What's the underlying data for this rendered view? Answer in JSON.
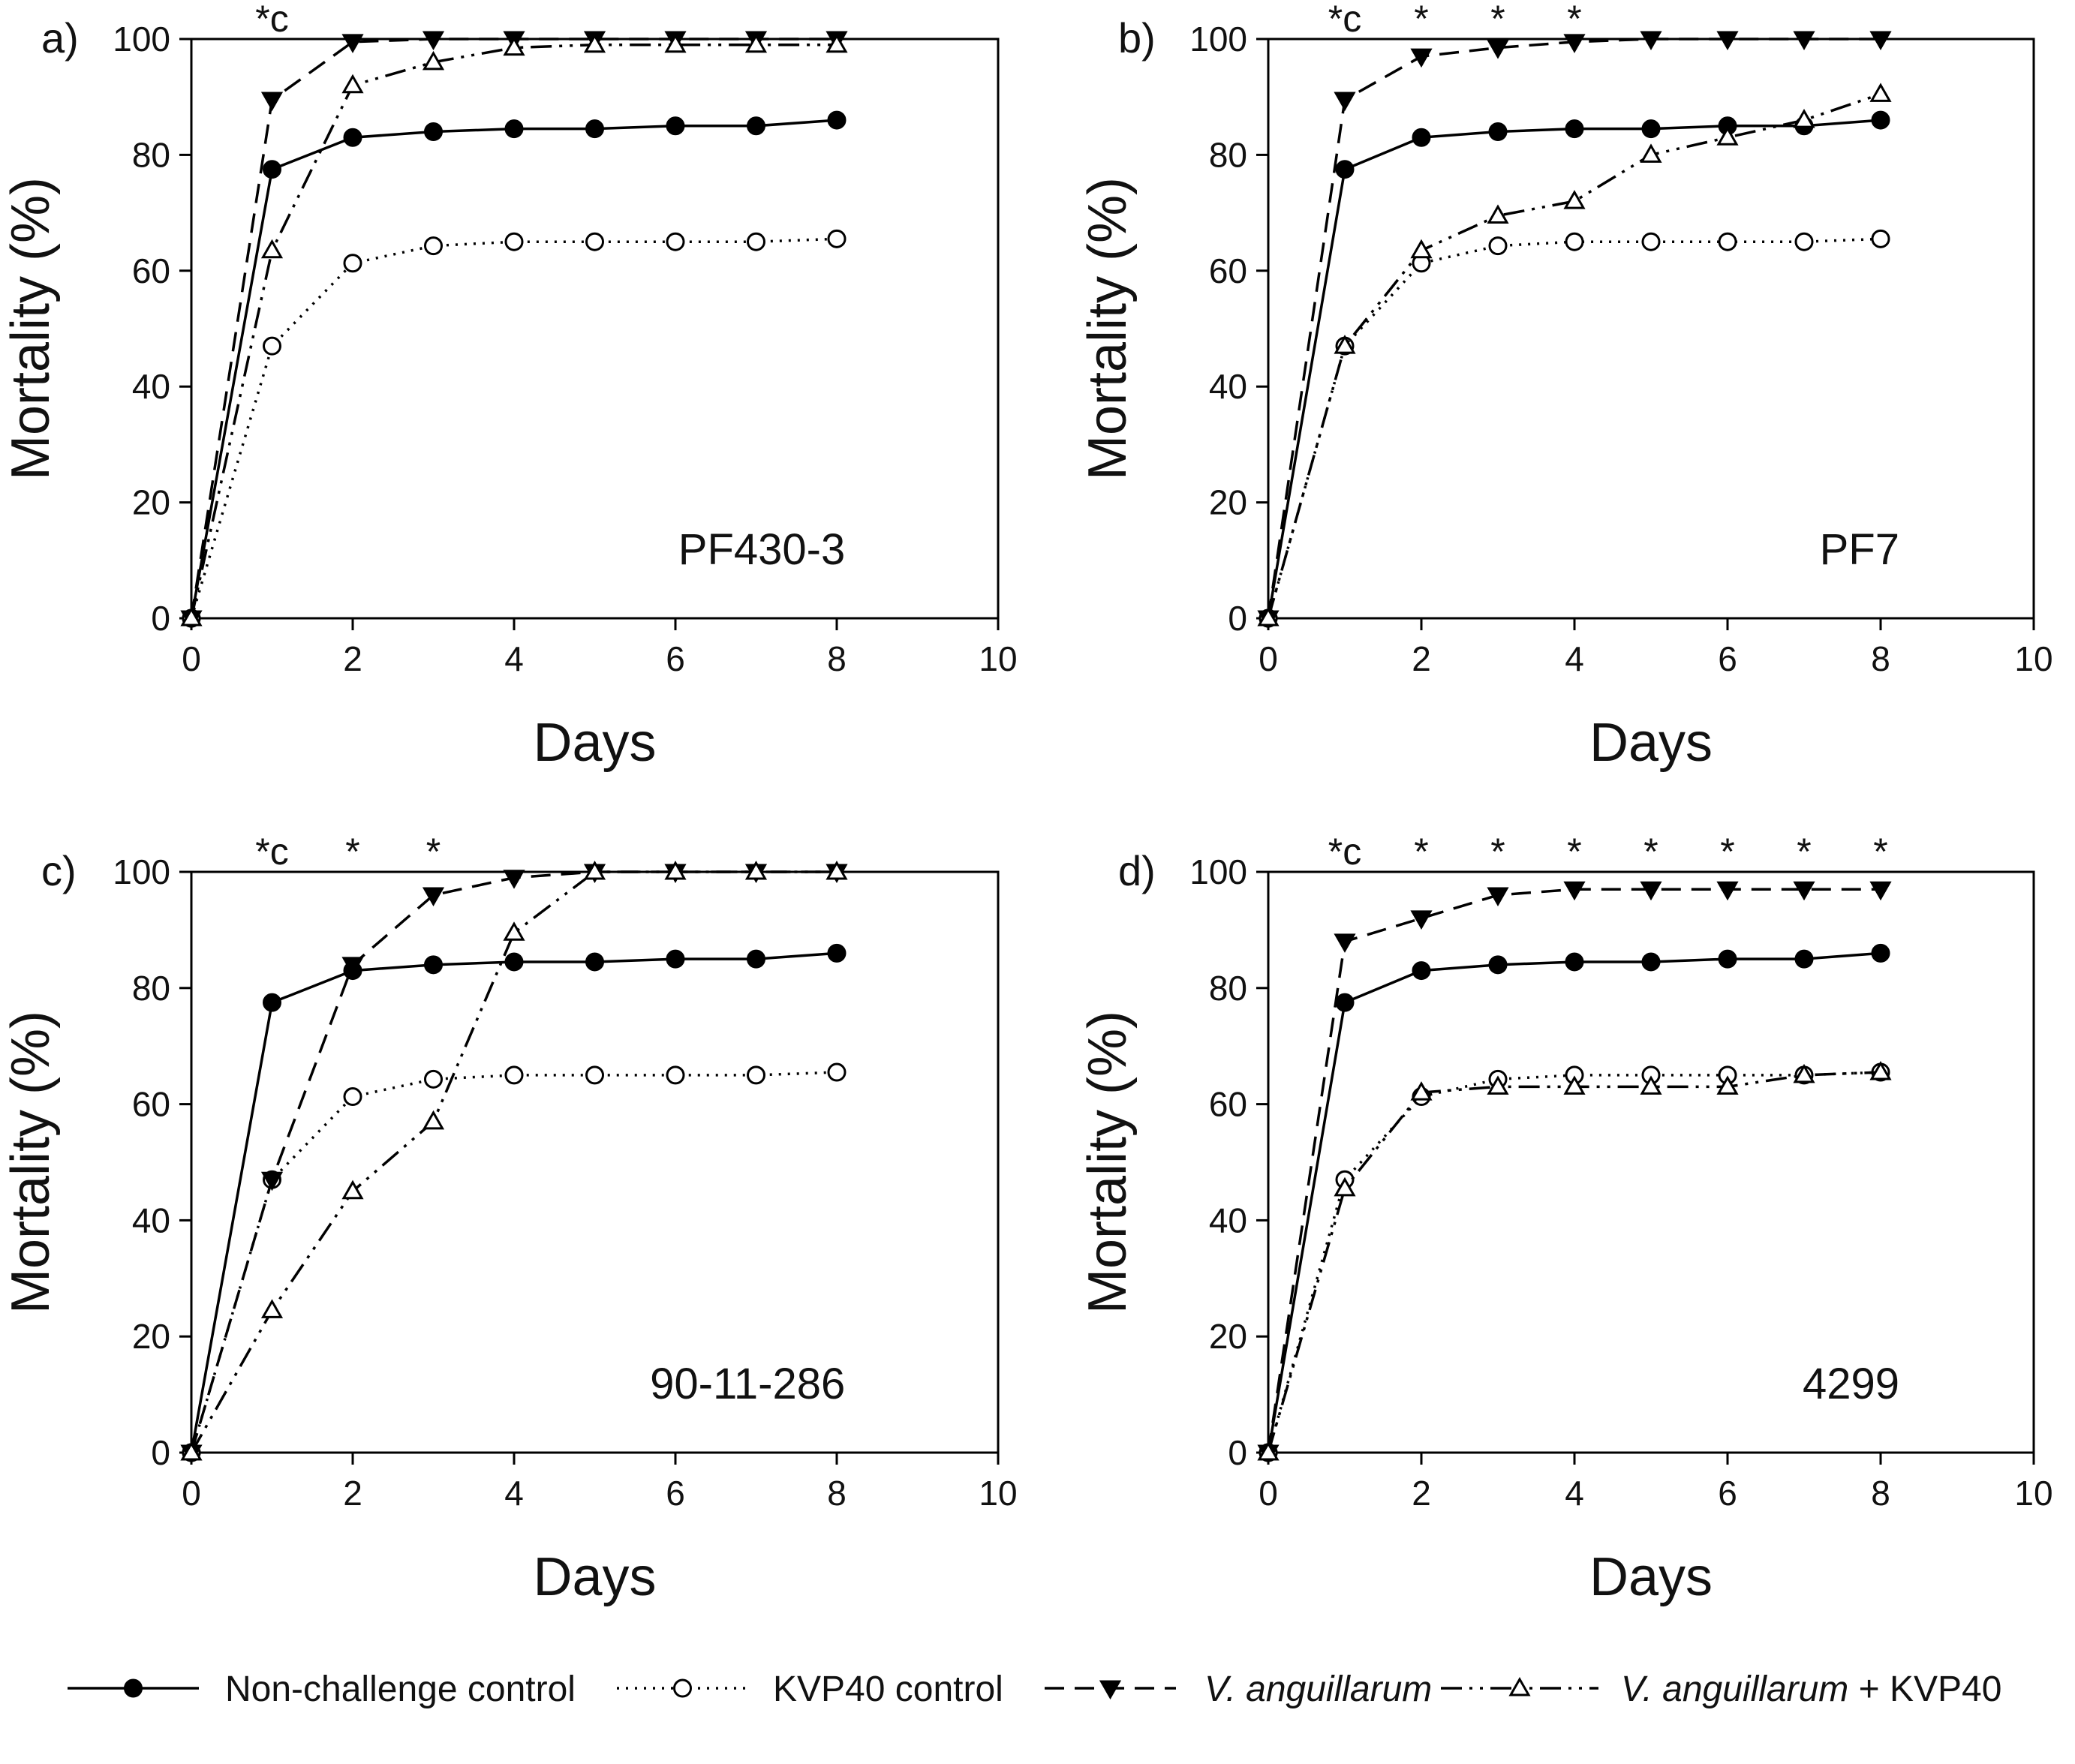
{
  "chart_data": [
    {
      "type": "line",
      "panel": "a)",
      "strain": "PF430-3",
      "xlabel": "Days",
      "ylabel": "Mortality (%)",
      "xlim": [
        0,
        10
      ],
      "ylim": [
        0,
        100
      ],
      "xticks": [
        0,
        2,
        4,
        6,
        8,
        10
      ],
      "yticks": [
        0,
        20,
        40,
        60,
        80,
        100
      ],
      "significance": [
        {
          "x": 1,
          "text": "*c"
        }
      ],
      "series": [
        {
          "name": "Non-challenge control",
          "x": [
            0,
            1,
            2,
            3,
            4,
            5,
            6,
            7,
            8
          ],
          "y": [
            0,
            77.5,
            83,
            84,
            84.5,
            84.5,
            85,
            85,
            86
          ]
        },
        {
          "name": "KVP40 control",
          "x": [
            0,
            1,
            2,
            3,
            4,
            5,
            6,
            7,
            8
          ],
          "y": [
            0,
            47,
            61.3,
            64.3,
            65,
            65,
            65,
            65,
            65.5
          ]
        },
        {
          "name": "V. anguillarum",
          "x": [
            0,
            1,
            2,
            3,
            4,
            5,
            6,
            7,
            8
          ],
          "y": [
            0,
            89.5,
            99.5,
            100,
            100,
            100,
            100,
            100,
            100
          ]
        },
        {
          "name": "V. anguillarum + KVP40",
          "x": [
            0,
            1,
            2,
            3,
            4,
            5,
            6,
            7,
            8
          ],
          "y": [
            0,
            63.5,
            92,
            96,
            98.5,
            99,
            99,
            99,
            99
          ]
        }
      ]
    },
    {
      "type": "line",
      "panel": "b)",
      "strain": "PF7",
      "xlabel": "Days",
      "ylabel": "Mortality (%)",
      "xlim": [
        0,
        10
      ],
      "ylim": [
        0,
        100
      ],
      "xticks": [
        0,
        2,
        4,
        6,
        8,
        10
      ],
      "yticks": [
        0,
        20,
        40,
        60,
        80,
        100
      ],
      "significance": [
        {
          "x": 1,
          "text": "*c"
        },
        {
          "x": 2,
          "text": "*"
        },
        {
          "x": 3,
          "text": "*"
        },
        {
          "x": 4,
          "text": "*"
        }
      ],
      "series": [
        {
          "name": "Non-challenge control",
          "x": [
            0,
            1,
            2,
            3,
            4,
            5,
            6,
            7,
            8
          ],
          "y": [
            0,
            77.5,
            83,
            84,
            84.5,
            84.5,
            85,
            85,
            86
          ]
        },
        {
          "name": "KVP40 control",
          "x": [
            0,
            1,
            2,
            3,
            4,
            5,
            6,
            7,
            8
          ],
          "y": [
            0,
            47,
            61.3,
            64.3,
            65,
            65,
            65,
            65,
            65.5
          ]
        },
        {
          "name": "V. anguillarum",
          "x": [
            0,
            1,
            2,
            3,
            4,
            5,
            6,
            7,
            8
          ],
          "y": [
            0,
            89.5,
            97,
            98.5,
            99.5,
            100,
            100,
            100,
            100
          ]
        },
        {
          "name": "V. anguillarum + KVP40",
          "x": [
            0,
            1,
            2,
            3,
            4,
            5,
            6,
            7,
            8
          ],
          "y": [
            0,
            47,
            63.5,
            69.5,
            72,
            80,
            83,
            86,
            90.5
          ]
        }
      ]
    },
    {
      "type": "line",
      "panel": "c)",
      "strain": "90-11-286",
      "xlabel": "Days",
      "ylabel": "Mortality (%)",
      "xlim": [
        0,
        10
      ],
      "ylim": [
        0,
        100
      ],
      "xticks": [
        0,
        2,
        4,
        6,
        8,
        10
      ],
      "yticks": [
        0,
        20,
        40,
        60,
        80,
        100
      ],
      "significance": [
        {
          "x": 1,
          "text": "*c"
        },
        {
          "x": 2,
          "text": "*"
        },
        {
          "x": 3,
          "text": "*"
        }
      ],
      "series": [
        {
          "name": "Non-challenge control",
          "x": [
            0,
            1,
            2,
            3,
            4,
            5,
            6,
            7,
            8
          ],
          "y": [
            0,
            77.5,
            83,
            84,
            84.5,
            84.5,
            85,
            85,
            86
          ]
        },
        {
          "name": "KVP40 control",
          "x": [
            0,
            1,
            2,
            3,
            4,
            5,
            6,
            7,
            8
          ],
          "y": [
            0,
            47,
            61.3,
            64.3,
            65,
            65,
            65,
            65,
            65.5
          ]
        },
        {
          "name": "V. anguillarum",
          "x": [
            0,
            1,
            2,
            3,
            4,
            5,
            6,
            7,
            8
          ],
          "y": [
            0,
            47,
            84,
            96,
            99,
            100,
            100,
            100,
            100
          ]
        },
        {
          "name": "V. anguillarum + KVP40",
          "x": [
            0,
            1,
            2,
            3,
            4,
            5,
            6,
            7,
            8
          ],
          "y": [
            0,
            24.5,
            45,
            57,
            89.5,
            100,
            100,
            100,
            100
          ]
        }
      ]
    },
    {
      "type": "line",
      "panel": "d)",
      "strain": "4299",
      "xlabel": "Days",
      "ylabel": "Mortality (%)",
      "xlim": [
        0,
        10
      ],
      "ylim": [
        0,
        100
      ],
      "xticks": [
        0,
        2,
        4,
        6,
        8,
        10
      ],
      "yticks": [
        0,
        20,
        40,
        60,
        80,
        100
      ],
      "significance": [
        {
          "x": 1,
          "text": "*c"
        },
        {
          "x": 2,
          "text": "*"
        },
        {
          "x": 3,
          "text": "*"
        },
        {
          "x": 4,
          "text": "*"
        },
        {
          "x": 5,
          "text": "*"
        },
        {
          "x": 6,
          "text": "*"
        },
        {
          "x": 7,
          "text": "*"
        },
        {
          "x": 8,
          "text": "*"
        }
      ],
      "series": [
        {
          "name": "Non-challenge control",
          "x": [
            0,
            1,
            2,
            3,
            4,
            5,
            6,
            7,
            8
          ],
          "y": [
            0,
            77.5,
            83,
            84,
            84.5,
            84.5,
            85,
            85,
            86
          ]
        },
        {
          "name": "KVP40 control",
          "x": [
            0,
            1,
            2,
            3,
            4,
            5,
            6,
            7,
            8
          ],
          "y": [
            0,
            47,
            61.3,
            64.3,
            65,
            65,
            65,
            65,
            65.5
          ]
        },
        {
          "name": "V. anguillarum",
          "x": [
            0,
            1,
            2,
            3,
            4,
            5,
            6,
            7,
            8
          ],
          "y": [
            0,
            88,
            92,
            96,
            97,
            97,
            97,
            97,
            97
          ]
        },
        {
          "name": "V. anguillarum + KVP40",
          "x": [
            0,
            1,
            2,
            3,
            4,
            5,
            6,
            7,
            8
          ],
          "y": [
            0,
            45.5,
            62,
            63,
            63,
            63,
            63,
            65,
            65.5
          ]
        }
      ]
    }
  ],
  "legend": {
    "placement": "bottom",
    "entries": [
      {
        "key": "non_challenge",
        "label": "Non-challenge control",
        "italic": "",
        "suffix": ""
      },
      {
        "key": "kvp40",
        "label": "KVP40 control",
        "italic": "",
        "suffix": ""
      },
      {
        "key": "vang",
        "label": "",
        "italic": "V. anguillarum",
        "suffix": ""
      },
      {
        "key": "vang_kvp40",
        "label": "",
        "italic": "V. anguillarum",
        "suffix": " + KVP40"
      }
    ]
  },
  "styles": {
    "non_challenge": {
      "dash": "",
      "marker": "circle",
      "fill": "#000000"
    },
    "kvp40": {
      "dash": "3 9",
      "marker": "circle",
      "fill": "#ffffff"
    },
    "vang": {
      "dash": "26 14",
      "marker": "triangle-down",
      "fill": "#000000"
    },
    "vang_kvp40": {
      "dash": "28 10 4 10 4 10",
      "marker": "triangle-up",
      "fill": "#ffffff"
    }
  }
}
